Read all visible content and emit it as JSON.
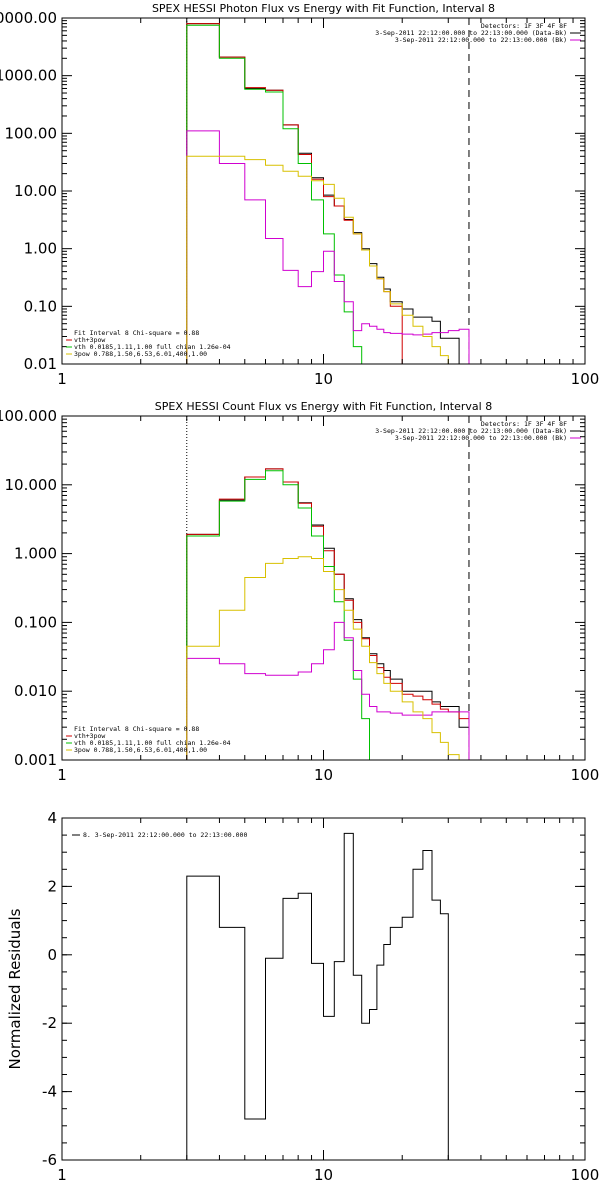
{
  "chart_data": [
    {
      "type": "line",
      "step": true,
      "title": "SPEX HESSI Photon Flux vs Energy with Fit Function, Interval 8",
      "xscale": "log",
      "yscale": "log",
      "xlim": [
        1,
        100
      ],
      "ylim": [
        0.01,
        10000
      ],
      "xticks": [
        1,
        10,
        100
      ],
      "xtick_labels": [
        "1",
        "10",
        "100"
      ],
      "yticks": [
        0.01,
        0.1,
        1,
        10,
        100,
        1000,
        10000
      ],
      "ytick_labels": [
        "0.01",
        "0.10",
        "1.00",
        "10.00",
        "100.00",
        "1000.00",
        "10000.00"
      ],
      "energy_edges": [
        3,
        4,
        5,
        6,
        7,
        8,
        9,
        10,
        11,
        12,
        13,
        14,
        15,
        16,
        17,
        18,
        20,
        22,
        24,
        26,
        28,
        30,
        33,
        36
      ],
      "legend_top": [
        "Detectors: 1F 3F 4F 8F",
        "3-Sep-2011 22:12:00.000 to 22:13:00.000 (Data-Bk)",
        "3-Sep-2011 22:12:00.000 to 22:13:00.000 (Bk)"
      ],
      "legend_top_colors": [
        "#ffffff",
        "#000000",
        "#d000d0"
      ],
      "legend_bottom": [
        "Fit Interval 8   Chi-square = 0.88",
        "vth+3pow",
        "vth 0.0185,1.11,1.00  full chian 1.26e-04",
        "3pow 0.788,1.50,6.53,6.01,400,1.00"
      ],
      "legend_bottom_colors": [
        "#ffffff",
        "#d00000",
        "#00c000",
        "#d8c000"
      ],
      "series": [
        {
          "color": "#000000",
          "values": [
            8000,
            2100,
            600,
            560,
            140,
            45,
            17,
            8.5,
            5.5,
            3.2,
            1.9,
            1.0,
            0.55,
            0.32,
            0.2,
            0.12,
            0.09,
            0.065,
            0.065,
            0.055,
            0.028,
            0.028,
            0.01
          ]
        },
        {
          "color": "#d00000",
          "values": [
            8000,
            2100,
            620,
            560,
            140,
            43,
            16,
            8,
            5.5,
            3.1,
            1.8,
            0.95,
            0.5,
            0.3,
            0.18,
            0.1
          ]
        },
        {
          "color": "#00c000",
          "values": [
            7500,
            2000,
            580,
            520,
            120,
            30,
            7,
            1.8,
            0.35,
            0.08,
            0.02
          ]
        },
        {
          "color": "#d000d0",
          "values": [
            110,
            30,
            7,
            1.5,
            0.42,
            0.22,
            0.4,
            0.9,
            0.27,
            0.12,
            0.038,
            0.05,
            0.045,
            0.04,
            0.035,
            0.034,
            0.033,
            0.032,
            0.033,
            0.035,
            0.035,
            0.038,
            0.04
          ]
        },
        {
          "color": "#d8c000",
          "values": [
            40,
            40,
            35,
            28,
            22,
            18,
            15,
            13,
            7.5,
            3.5,
            1.8,
            0.95,
            0.5,
            0.3,
            0.18,
            0.11,
            0.07,
            0.045,
            0.03,
            0.02,
            0.014,
            0.009,
            0.006
          ]
        }
      ],
      "vline_dotted": 3,
      "vline_dashed": 36
    },
    {
      "type": "line",
      "step": true,
      "title": "SPEX HESSI Count Flux vs Energy with Fit Function, Interval 8",
      "xscale": "log",
      "yscale": "log",
      "xlim": [
        1,
        100
      ],
      "ylim": [
        0.001,
        100
      ],
      "xticks": [
        1,
        10,
        100
      ],
      "xtick_labels": [
        "1",
        "10",
        "100"
      ],
      "yticks": [
        0.001,
        0.01,
        0.1,
        1,
        10,
        100
      ],
      "ytick_labels": [
        "0.001",
        "0.010",
        "0.100",
        "1.000",
        "10.000",
        "100.000"
      ],
      "energy_edges": [
        3,
        4,
        5,
        6,
        7,
        8,
        9,
        10,
        11,
        12,
        13,
        14,
        15,
        16,
        17,
        18,
        20,
        22,
        24,
        26,
        28,
        30,
        33,
        36
      ],
      "legend_top": [
        "Detectors: 1F 3F 4F 8F",
        "3-Sep-2011 22:12:00.000 to 22:13:00.000 (Data-Bk)",
        "3-Sep-2011 22:12:00.000 to 22:13:00.000 (Bk)"
      ],
      "legend_top_colors": [
        "#ffffff",
        "#000000",
        "#d000d0"
      ],
      "legend_bottom": [
        "Fit Interval 8   Chi-square = 0.88",
        "vth+3pow",
        "vth 0.0185,1.11,1.00  full chian 1.26e-04",
        "3pow 0.788,1.50,6.53,6.01,400,1.00"
      ],
      "legend_bottom_colors": [
        "#ffffff",
        "#d00000",
        "#00c000",
        "#d8c000"
      ],
      "series": [
        {
          "color": "#000000",
          "values": [
            1.9,
            6,
            13,
            17,
            11,
            5.5,
            2.6,
            1.2,
            0.5,
            0.22,
            0.11,
            0.06,
            0.035,
            0.025,
            0.02,
            0.015,
            0.01,
            0.01,
            0.01,
            0.007,
            0.006,
            0.006,
            0.003
          ]
        },
        {
          "color": "#d00000",
          "values": [
            1.9,
            6.2,
            13,
            17,
            11,
            5.4,
            2.5,
            1.1,
            0.5,
            0.21,
            0.1,
            0.058,
            0.033,
            0.022,
            0.016,
            0.013,
            0.009,
            0.0085,
            0.0075,
            0.0065,
            0.0055,
            0.005,
            0.004
          ]
        },
        {
          "color": "#00c000",
          "values": [
            1.8,
            5.8,
            12,
            16,
            10,
            4.6,
            1.8,
            0.65,
            0.2,
            0.055,
            0.015,
            0.004,
            0.001
          ]
        },
        {
          "color": "#d000d0",
          "values": [
            0.03,
            0.025,
            0.018,
            0.017,
            0.017,
            0.019,
            0.025,
            0.04,
            0.1,
            0.06,
            0.02,
            0.009,
            0.006,
            0.005,
            0.005,
            0.0048,
            0.0045,
            0.0045,
            0.0045,
            0.005,
            0.005,
            0.005,
            0.005
          ]
        },
        {
          "color": "#d8c000",
          "values": [
            0.045,
            0.15,
            0.45,
            0.72,
            0.85,
            0.9,
            0.85,
            0.55,
            0.3,
            0.15,
            0.08,
            0.045,
            0.026,
            0.018,
            0.013,
            0.01,
            0.007,
            0.005,
            0.004,
            0.0025,
            0.0018,
            0.0012,
            0.0008
          ]
        }
      ],
      "vline_dotted": 3,
      "vline_dashed": 36
    },
    {
      "type": "line",
      "step": true,
      "title": "",
      "xscale": "log",
      "yscale": "linear",
      "xlim": [
        1,
        100
      ],
      "ylim": [
        -6,
        4
      ],
      "ylabel": "Normalized Residuals",
      "xticks": [
        1,
        10,
        100
      ],
      "xtick_labels": [
        "1",
        "10",
        "100"
      ],
      "yticks": [
        -6,
        -4,
        -2,
        0,
        2,
        4
      ],
      "ytick_labels": [
        "-6",
        "-4",
        "-2",
        "0",
        "2",
        "4"
      ],
      "legend": [
        "8.  3-Sep-2011 22:12:00.000 to 22:13:00.000"
      ],
      "energy_edges": [
        3,
        4,
        5,
        6,
        7,
        8,
        9,
        10,
        11,
        12,
        13,
        14,
        15,
        16,
        17,
        18,
        20,
        22,
        24,
        26,
        28,
        30,
        33,
        36
      ],
      "series": [
        {
          "color": "#000000",
          "values": [
            2.3,
            0.8,
            -4.8,
            -0.1,
            1.65,
            1.8,
            -0.25,
            -1.8,
            -0.2,
            3.55,
            -0.6,
            -2.0,
            -1.6,
            -0.3,
            0.3,
            0.8,
            1.1,
            2.5,
            3.05,
            1.6,
            1.2
          ]
        }
      ]
    }
  ]
}
